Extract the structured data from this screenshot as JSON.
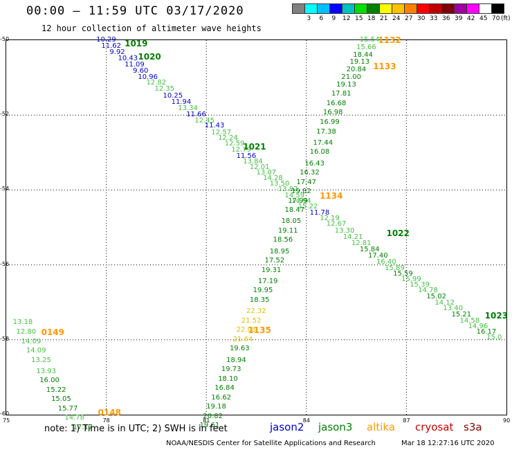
{
  "header": {
    "title": "00:00 – 11:59 UTC 03/17/2020",
    "subtitle": "12 hour collection of altimeter wave heights"
  },
  "scale": {
    "colors": [
      "#808080",
      "#00ffff",
      "#00bfff",
      "#0000ff",
      "#00c0c0",
      "#00e000",
      "#008000",
      "#ffff00",
      "#ffc000",
      "#ff8000",
      "#ff0000",
      "#c00000",
      "#800000",
      "#a000a0",
      "#ff00ff",
      "#ffffff",
      "#000000"
    ],
    "labels": [
      "3",
      "6",
      "9",
      "12",
      "15",
      "18",
      "21",
      "24",
      "27",
      "30",
      "33",
      "36",
      "39",
      "42",
      "45",
      "70",
      "(ft)"
    ]
  },
  "axes": {
    "y_ticks": [
      "-50",
      "-52",
      "-54",
      "-56",
      "-58",
      "-60"
    ],
    "x_ticks": [
      "75",
      "78",
      "81",
      "84",
      "87",
      "90"
    ]
  },
  "colors": {
    "jason2": "#0000cc",
    "jason3": "#008000",
    "altika": "#ff9900",
    "cryosat": "#cc0000",
    "s3a": "#880000",
    "light": "#44c044",
    "yellow": "#e0c000"
  },
  "map_data": {
    "lon_range": [
      75,
      90
    ],
    "lat_range": [
      -50,
      -60
    ],
    "track_labels": [
      {
        "text": "1019",
        "lon": 78.55,
        "lat": -50.1,
        "color": "jason3"
      },
      {
        "text": "1020",
        "lon": 78.95,
        "lat": -50.45,
        "color": "jason3"
      },
      {
        "text": "1021",
        "lon": 82.1,
        "lat": -52.85,
        "color": "jason3"
      },
      {
        "text": "1022",
        "lon": 86.4,
        "lat": -55.15,
        "color": "jason3"
      },
      {
        "text": "1023",
        "lon": 89.35,
        "lat": -57.35,
        "color": "jason3"
      },
      {
        "text": "1132",
        "lon": 86.15,
        "lat": -50.0,
        "color": "altika"
      },
      {
        "text": "1133",
        "lon": 86.0,
        "lat": -50.7,
        "color": "altika"
      },
      {
        "text": "1134",
        "lon": 84.4,
        "lat": -54.15,
        "color": "altika"
      },
      {
        "text": "1135",
        "lon": 82.25,
        "lat": -57.75,
        "color": "altika"
      },
      {
        "text": "0149",
        "lon": 76.05,
        "lat": -57.8,
        "color": "altika"
      },
      {
        "text": "0148",
        "lon": 77.75,
        "lat": -59.95,
        "color": "altika"
      }
    ],
    "tracks": [
      {
        "points": [
          {
            "v": "10.29",
            "lon": 77.7,
            "lat": -50.0,
            "c": "jason2"
          },
          {
            "v": "11.62",
            "lon": 77.85,
            "lat": -50.17,
            "c": "jason2"
          },
          {
            "v": "9.92",
            "lon": 78.1,
            "lat": -50.33,
            "c": "jason2"
          },
          {
            "v": "10.43",
            "lon": 78.35,
            "lat": -50.5,
            "c": "jason2"
          },
          {
            "v": "11.09",
            "lon": 78.55,
            "lat": -50.67,
            "c": "jason2"
          },
          {
            "v": "9.60",
            "lon": 78.8,
            "lat": -50.83,
            "c": "jason2"
          },
          {
            "v": "10.96",
            "lon": 78.95,
            "lat": -51.0,
            "c": "jason2"
          },
          {
            "v": "12.82",
            "lon": 79.2,
            "lat": -51.15,
            "c": "light"
          },
          {
            "v": "12.35",
            "lon": 79.45,
            "lat": -51.32,
            "c": "light"
          },
          {
            "v": "10.25",
            "lon": 79.7,
            "lat": -51.5,
            "c": "jason2"
          },
          {
            "v": "11.94",
            "lon": 79.95,
            "lat": -51.67,
            "c": "jason2"
          },
          {
            "v": "13.34",
            "lon": 80.15,
            "lat": -51.83,
            "c": "light"
          },
          {
            "v": "11.66",
            "lon": 80.4,
            "lat": -52.0,
            "c": "jason2"
          },
          {
            "v": "12.45",
            "lon": 80.65,
            "lat": -52.17,
            "c": "light"
          },
          {
            "v": "11.43",
            "lon": 80.95,
            "lat": -52.3,
            "c": "jason2"
          },
          {
            "v": "12.57",
            "lon": 81.15,
            "lat": -52.47,
            "c": "light"
          },
          {
            "v": "12.24",
            "lon": 81.35,
            "lat": -52.62,
            "c": "light"
          },
          {
            "v": "12.59",
            "lon": 81.55,
            "lat": -52.78,
            "c": "light"
          },
          {
            "v": "12.79",
            "lon": 81.75,
            "lat": -52.93,
            "c": "light"
          },
          {
            "v": "11.56",
            "lon": 81.9,
            "lat": -53.1,
            "c": "jason2"
          },
          {
            "v": "13.84",
            "lon": 82.1,
            "lat": -53.25,
            "c": "light"
          },
          {
            "v": "12.01",
            "lon": 82.3,
            "lat": -53.4,
            "c": "light"
          },
          {
            "v": "13.07",
            "lon": 82.5,
            "lat": -53.55,
            "c": "light"
          },
          {
            "v": "14.28",
            "lon": 82.7,
            "lat": -53.7,
            "c": "light"
          },
          {
            "v": "13.50",
            "lon": 82.9,
            "lat": -53.85,
            "c": "light"
          },
          {
            "v": "13.82",
            "lon": 83.15,
            "lat": -54.0,
            "c": "light"
          },
          {
            "v": "14.59",
            "lon": 83.35,
            "lat": -54.15,
            "c": "light"
          },
          {
            "v": "14.94",
            "lon": 83.55,
            "lat": -54.3,
            "c": "light"
          },
          {
            "v": "15.22",
            "lon": 83.75,
            "lat": -54.45,
            "c": "light"
          },
          {
            "v": "11.78",
            "lon": 84.1,
            "lat": -54.62,
            "c": "jason2"
          },
          {
            "v": "12.19",
            "lon": 84.4,
            "lat": -54.77,
            "c": "light"
          },
          {
            "v": "12.67",
            "lon": 84.6,
            "lat": -54.92,
            "c": "light"
          },
          {
            "v": "13.30",
            "lon": 84.85,
            "lat": -55.1,
            "c": "light"
          },
          {
            "v": "14.21",
            "lon": 85.1,
            "lat": -55.27,
            "c": "light"
          },
          {
            "v": "12.81",
            "lon": 85.35,
            "lat": -55.43,
            "c": "light"
          },
          {
            "v": "15.84",
            "lon": 85.6,
            "lat": -55.6,
            "c": "jason3"
          },
          {
            "v": "17.40",
            "lon": 85.85,
            "lat": -55.77,
            "c": "jason3"
          },
          {
            "v": "16.40",
            "lon": 86.1,
            "lat": -55.93,
            "c": "light"
          },
          {
            "v": "15.89",
            "lon": 86.35,
            "lat": -56.1,
            "c": "light"
          },
          {
            "v": "15.59",
            "lon": 86.6,
            "lat": -56.25,
            "c": "jason3"
          },
          {
            "v": "15.99",
            "lon": 86.85,
            "lat": -56.4,
            "c": "light"
          },
          {
            "v": "15.39",
            "lon": 87.1,
            "lat": -56.55,
            "c": "light"
          },
          {
            "v": "14.78",
            "lon": 87.35,
            "lat": -56.7,
            "c": "light"
          },
          {
            "v": "15.02",
            "lon": 87.6,
            "lat": -56.85,
            "c": "jason3"
          },
          {
            "v": "14.12",
            "lon": 87.85,
            "lat": -57.02,
            "c": "light"
          },
          {
            "v": "13.40",
            "lon": 88.1,
            "lat": -57.17,
            "c": "light"
          },
          {
            "v": "15.21",
            "lon": 88.35,
            "lat": -57.33,
            "c": "jason3"
          },
          {
            "v": "14.58",
            "lon": 88.6,
            "lat": -57.5,
            "c": "light"
          },
          {
            "v": "14.96",
            "lon": 88.85,
            "lat": -57.65,
            "c": "light"
          },
          {
            "v": "16.17",
            "lon": 89.1,
            "lat": -57.8,
            "c": "jason3"
          },
          {
            "v": "15.0",
            "lon": 89.4,
            "lat": -57.95,
            "c": "light"
          }
        ]
      },
      {
        "points": [
          {
            "v": "15.54",
            "lon": 85.6,
            "lat": -50.0,
            "c": "light"
          },
          {
            "v": "15.66",
            "lon": 85.5,
            "lat": -50.2,
            "c": "light"
          },
          {
            "v": "18.44",
            "lon": 85.4,
            "lat": -50.4,
            "c": "jason3"
          },
          {
            "v": "19.13",
            "lon": 85.3,
            "lat": -50.6,
            "c": "jason3"
          },
          {
            "v": "20.84",
            "lon": 85.2,
            "lat": -50.8,
            "c": "jason3"
          },
          {
            "v": "21.00",
            "lon": 85.05,
            "lat": -51.0,
            "c": "jason3"
          },
          {
            "v": "19.13",
            "lon": 84.9,
            "lat": -51.2,
            "c": "jason3"
          },
          {
            "v": "17.81",
            "lon": 84.75,
            "lat": -51.45,
            "c": "jason3"
          },
          {
            "v": "16.68",
            "lon": 84.6,
            "lat": -51.7,
            "c": "jason3"
          },
          {
            "v": "16.98",
            "lon": 84.5,
            "lat": -51.95,
            "c": "jason3"
          },
          {
            "v": "16.99",
            "lon": 84.4,
            "lat": -52.2,
            "c": "jason3"
          },
          {
            "v": "17.38",
            "lon": 84.3,
            "lat": -52.45,
            "c": "jason3"
          },
          {
            "v": "17.44",
            "lon": 84.2,
            "lat": -52.75,
            "c": "jason3"
          },
          {
            "v": "16.08",
            "lon": 84.1,
            "lat": -53.0,
            "c": "jason3"
          },
          {
            "v": "16.43",
            "lon": 83.95,
            "lat": -53.3,
            "c": "jason3"
          },
          {
            "v": "16.32",
            "lon": 83.8,
            "lat": -53.55,
            "c": "jason3"
          },
          {
            "v": "17.47",
            "lon": 83.7,
            "lat": -53.8,
            "c": "jason3"
          },
          {
            "v": "19.82",
            "lon": 83.55,
            "lat": -54.05,
            "c": "jason3"
          },
          {
            "v": "17.99",
            "lon": 83.45,
            "lat": -54.3,
            "c": "jason3"
          },
          {
            "v": "18.47",
            "lon": 83.35,
            "lat": -54.55,
            "c": "jason3"
          },
          {
            "v": "18.05",
            "lon": 83.25,
            "lat": -54.85,
            "c": "jason3"
          },
          {
            "v": "19.11",
            "lon": 83.15,
            "lat": -55.1,
            "c": "jason3"
          },
          {
            "v": "18.56",
            "lon": 83.0,
            "lat": -55.35,
            "c": "jason3"
          },
          {
            "v": "18.95",
            "lon": 82.9,
            "lat": -55.65,
            "c": "jason3"
          },
          {
            "v": "17.52",
            "lon": 82.75,
            "lat": -55.9,
            "c": "jason3"
          },
          {
            "v": "19.31",
            "lon": 82.65,
            "lat": -56.15,
            "c": "jason3"
          },
          {
            "v": "17.19",
            "lon": 82.55,
            "lat": -56.45,
            "c": "jason3"
          },
          {
            "v": "19.95",
            "lon": 82.4,
            "lat": -56.7,
            "c": "jason3"
          },
          {
            "v": "18.35",
            "lon": 82.3,
            "lat": -56.95,
            "c": "jason3"
          },
          {
            "v": "22.32",
            "lon": 82.2,
            "lat": -57.25,
            "c": "yellow"
          },
          {
            "v": "21.52",
            "lon": 82.05,
            "lat": -57.5,
            "c": "yellow"
          },
          {
            "v": "22.08",
            "lon": 81.9,
            "lat": -57.75,
            "c": "yellow"
          },
          {
            "v": "21.64",
            "lon": 81.8,
            "lat": -58.0,
            "c": "yellow"
          },
          {
            "v": "19.63",
            "lon": 81.7,
            "lat": -58.25,
            "c": "jason3"
          },
          {
            "v": "18.94",
            "lon": 81.6,
            "lat": -58.55,
            "c": "jason3"
          },
          {
            "v": "19.73",
            "lon": 81.45,
            "lat": -58.8,
            "c": "jason3"
          },
          {
            "v": "18.10",
            "lon": 81.35,
            "lat": -59.05,
            "c": "jason3"
          },
          {
            "v": "16.84",
            "lon": 81.25,
            "lat": -59.3,
            "c": "jason3"
          },
          {
            "v": "16.62",
            "lon": 81.15,
            "lat": -59.55,
            "c": "jason3"
          },
          {
            "v": "19.18",
            "lon": 81.0,
            "lat": -59.8,
            "c": "jason3"
          },
          {
            "v": "20.82",
            "lon": 80.9,
            "lat": -60.05,
            "c": "jason3"
          },
          {
            "v": "19.61",
            "lon": 80.8,
            "lat": -60.3,
            "c": "jason3"
          }
        ]
      },
      {
        "points": [
          {
            "v": "13.18",
            "lon": 75.2,
            "lat": -57.55,
            "c": "light"
          },
          {
            "v": "12.80",
            "lon": 75.3,
            "lat": -57.8,
            "c": "light"
          },
          {
            "v": "14.09",
            "lon": 75.45,
            "lat": -58.05,
            "c": "light"
          },
          {
            "v": "14.09",
            "lon": 75.6,
            "lat": -58.3,
            "c": "light"
          },
          {
            "v": "13.25",
            "lon": 75.75,
            "lat": -58.55,
            "c": "light"
          },
          {
            "v": "13.93",
            "lon": 75.9,
            "lat": -58.85,
            "c": "light"
          },
          {
            "v": "16.00",
            "lon": 76.0,
            "lat": -59.1,
            "c": "jason3"
          },
          {
            "v": "15.22",
            "lon": 76.2,
            "lat": -59.35,
            "c": "jason3"
          },
          {
            "v": "15.05",
            "lon": 76.35,
            "lat": -59.6,
            "c": "jason3"
          },
          {
            "v": "15.77",
            "lon": 76.55,
            "lat": -59.85,
            "c": "jason3"
          },
          {
            "v": "14.78",
            "lon": 76.75,
            "lat": -60.1,
            "c": "light"
          },
          {
            "v": "17.17",
            "lon": 77.0,
            "lat": -60.35,
            "c": "jason3"
          }
        ]
      }
    ]
  },
  "footer": {
    "note": "note: 1) Time is in UTC; 2) SWH is in feet",
    "legend": [
      {
        "text": "jason2",
        "color": "jason2"
      },
      {
        "text": "jason3",
        "color": "jason3"
      },
      {
        "text": "altika",
        "color": "altika"
      },
      {
        "text": "cryosat",
        "color": "cryosat"
      },
      {
        "text": "s3a",
        "color": "s3a"
      }
    ],
    "credit": "NOAA/NESDIS Center for Satellite Applications and Research",
    "stamp": "Mar 18 12:27:16 UTC 2020"
  }
}
